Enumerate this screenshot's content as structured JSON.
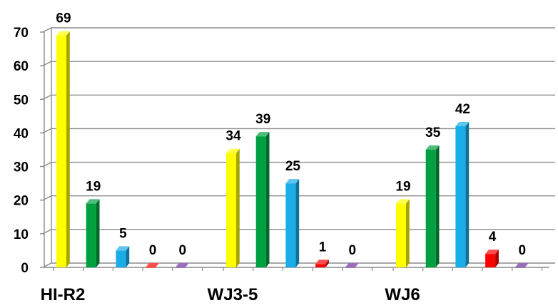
{
  "chart_data": {
    "type": "bar",
    "title": "",
    "xlabel": "",
    "ylabel": "",
    "categories": [
      "HI-R2",
      "WJ3-5",
      "WJ6"
    ],
    "series": [
      {
        "color": "#FFFF00",
        "values": [
          69,
          34,
          19
        ]
      },
      {
        "color": "#00A040",
        "values": [
          19,
          39,
          35
        ]
      },
      {
        "color": "#1AAEE8",
        "values": [
          5,
          25,
          42
        ]
      },
      {
        "color": "#FF0000",
        "values": [
          0,
          1,
          4
        ]
      },
      {
        "color": "#7030A0",
        "values": [
          0,
          0,
          0
        ]
      }
    ],
    "ylim": [
      0,
      70
    ],
    "yticks": [
      "0",
      "10",
      "20",
      "30",
      "40",
      "50",
      "60",
      "70"
    ],
    "grid": true,
    "legend": "none",
    "data_labels": true,
    "style": "3d-bars"
  }
}
